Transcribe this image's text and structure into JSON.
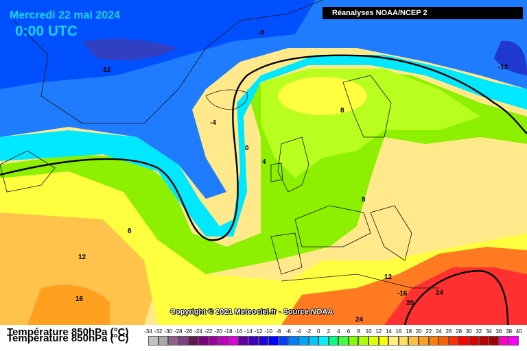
{
  "header": {
    "date": "Mercredi 22 mai 2024",
    "time": "0:00 UTC",
    "source": "Réanalyses NOAA/NCEP 2"
  },
  "copyright": "Copyright © 2021 Meteociel.fr - Source NOAA",
  "contour_labels": [
    "-8",
    "-12",
    "-12",
    "-4",
    "0",
    "4",
    "8",
    "8",
    "8",
    "12",
    "12",
    "16",
    "-16",
    "20",
    "24",
    "24"
  ],
  "legend": {
    "title": "Température 850hPa (°C)",
    "ticks": [
      "-34",
      "-32",
      "-30",
      "-28",
      "-26",
      "-24",
      "-22",
      "-20",
      "-18",
      "-16",
      "-14",
      "-12",
      "-10",
      "-8",
      "-6",
      "-4",
      "-2",
      "0",
      "2",
      "4",
      "6",
      "8",
      "10",
      "12",
      "14",
      "16",
      "18",
      "20",
      "22",
      "24",
      "26",
      "28",
      "30",
      "32",
      "34",
      "36",
      "38",
      "40"
    ],
    "colors": [
      "#c0c0c0",
      "#a8a8a8",
      "#906090",
      "#804080",
      "#601850",
      "#800080",
      "#a000a0",
      "#c000c0",
      "#e000e0",
      "#6000a0",
      "#4000c0",
      "#2000e0",
      "#0000ff",
      "#0040ff",
      "#0080ff",
      "#00a0ff",
      "#00c8ff",
      "#00f0ff",
      "#00ff80",
      "#40ff40",
      "#80ff00",
      "#b0ff00",
      "#e0ff00",
      "#ffff00",
      "#fff080",
      "#ffe060",
      "#ffc040",
      "#ffa020",
      "#ff8000",
      "#ff6000",
      "#ff3000",
      "#ff0000",
      "#e00000",
      "#c00000",
      "#a00000",
      "#ff00c0",
      "#ff00ff"
    ]
  }
}
